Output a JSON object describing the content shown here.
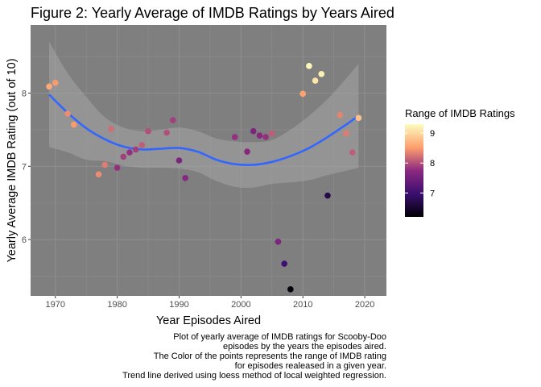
{
  "chart_data": {
    "type": "scatter",
    "title": "Figure 2: Yearly Average of IMDB Ratings by Years Aired",
    "xlabel": "Year Episodes Aired",
    "ylabel": "Yearly Average IMDB Rating (out of 10)",
    "xlim": [
      1966,
      2023.5
    ],
    "ylim": [
      5.23,
      8.93
    ],
    "xticks": [
      1970,
      1980,
      1990,
      2000,
      2010,
      2020
    ],
    "yticks": [
      6,
      7,
      8
    ],
    "grid": true,
    "legend": {
      "title": "Range of IMDB Ratings",
      "placement": "right",
      "range": [
        6.2,
        9.3
      ],
      "ticks": [
        7,
        8,
        9
      ]
    },
    "points": [
      {
        "x": 1969,
        "y": 8.09,
        "range": 8.6
      },
      {
        "x": 1970,
        "y": 8.14,
        "range": 8.5
      },
      {
        "x": 1972,
        "y": 7.72,
        "range": 8.4
      },
      {
        "x": 1973,
        "y": 7.57,
        "range": 8.5
      },
      {
        "x": 1977,
        "y": 6.89,
        "range": 8.4
      },
      {
        "x": 1978,
        "y": 7.02,
        "range": 8.3
      },
      {
        "x": 1979,
        "y": 7.51,
        "range": 8.2
      },
      {
        "x": 1980,
        "y": 6.98,
        "range": 7.8
      },
      {
        "x": 1981,
        "y": 7.13,
        "range": 7.9
      },
      {
        "x": 1982,
        "y": 7.19,
        "range": 7.8
      },
      {
        "x": 1983,
        "y": 7.23,
        "range": 7.9
      },
      {
        "x": 1984,
        "y": 7.29,
        "range": 8.1
      },
      {
        "x": 1985,
        "y": 7.48,
        "range": 8.0
      },
      {
        "x": 1988,
        "y": 7.46,
        "range": 8.0
      },
      {
        "x": 1989,
        "y": 7.63,
        "range": 7.9
      },
      {
        "x": 1990,
        "y": 7.08,
        "range": 7.6
      },
      {
        "x": 1991,
        "y": 6.84,
        "range": 7.7
      },
      {
        "x": 1999,
        "y": 7.4,
        "range": 7.8
      },
      {
        "x": 2001,
        "y": 7.2,
        "range": 7.7
      },
      {
        "x": 2002,
        "y": 7.48,
        "range": 7.6
      },
      {
        "x": 2003,
        "y": 7.42,
        "range": 7.7
      },
      {
        "x": 2004,
        "y": 7.4,
        "range": 7.8
      },
      {
        "x": 2005,
        "y": 7.45,
        "range": 8.1
      },
      {
        "x": 2006,
        "y": 5.97,
        "range": 7.6
      },
      {
        "x": 2007,
        "y": 5.67,
        "range": 7.0
      },
      {
        "x": 2008,
        "y": 5.32,
        "range": 6.25
      },
      {
        "x": 2010,
        "y": 7.99,
        "range": 8.55
      },
      {
        "x": 2011,
        "y": 8.37,
        "range": 9.25
      },
      {
        "x": 2012,
        "y": 8.17,
        "range": 9.1
      },
      {
        "x": 2013,
        "y": 8.26,
        "range": 9.2
      },
      {
        "x": 2014,
        "y": 6.6,
        "range": 6.7
      },
      {
        "x": 2016,
        "y": 7.7,
        "range": 8.35
      },
      {
        "x": 2017,
        "y": 7.45,
        "range": 8.3
      },
      {
        "x": 2018,
        "y": 7.19,
        "range": 8.1
      },
      {
        "x": 2019,
        "y": 7.66,
        "range": 8.8
      }
    ],
    "trend": {
      "x": [
        1969,
        1972,
        1975,
        1978,
        1981,
        1984,
        1987,
        1990,
        1993,
        1996,
        1999,
        2002,
        2005,
        2008,
        2011,
        2014,
        2017,
        2019
      ],
      "y": [
        7.98,
        7.73,
        7.52,
        7.37,
        7.27,
        7.23,
        7.24,
        7.25,
        7.2,
        7.09,
        7.03,
        7.02,
        7.06,
        7.14,
        7.25,
        7.4,
        7.57,
        7.69
      ],
      "upper": [
        8.7,
        8.27,
        7.95,
        7.67,
        7.53,
        7.48,
        7.5,
        7.53,
        7.48,
        7.38,
        7.34,
        7.33,
        7.36,
        7.5,
        7.69,
        7.92,
        8.2,
        8.4
      ],
      "lower": [
        7.26,
        7.19,
        7.09,
        7.07,
        7.01,
        6.98,
        6.98,
        6.97,
        6.92,
        6.8,
        6.72,
        6.71,
        6.76,
        6.78,
        6.81,
        6.88,
        6.94,
        6.98
      ]
    },
    "caption": [
      "Plot of yearly average of IMDB ratings for Scooby-Doo",
      "episodes by the years the episodes aired.",
      "The Color of the points represents the range of IMDB rating",
      "for episodes realeased in a given year.",
      "Trend line derived using loess method of local weighted regression."
    ]
  }
}
